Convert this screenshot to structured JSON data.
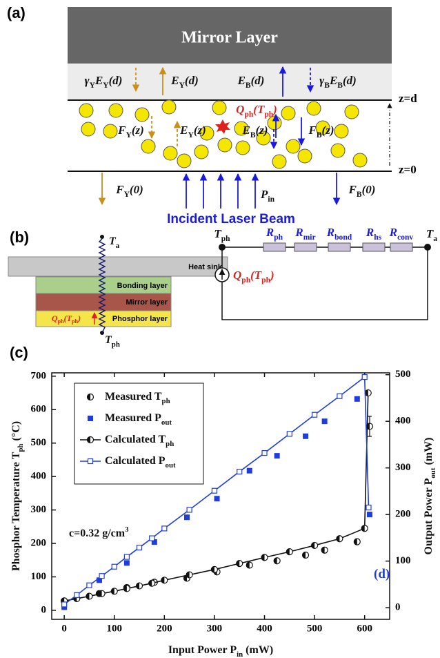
{
  "diagram_a": {
    "label": "(a)",
    "mirror": "Mirror Layer",
    "top_labels": [
      [
        "γ",
        "Y",
        "E",
        "Y",
        "(d)"
      ],
      [
        "E",
        "Y",
        "(d)"
      ],
      [
        "E",
        "B",
        "(d)"
      ],
      [
        "γ",
        "B",
        "E",
        "B",
        "(d)"
      ]
    ],
    "inner_labels": [
      [
        "F",
        "Y",
        "(z)"
      ],
      [
        "E",
        "Y",
        "(z)"
      ],
      [
        "Q",
        "ph",
        "(T",
        "ph",
        ")"
      ],
      [
        "E",
        "B",
        "(z)"
      ],
      [
        "F",
        "B",
        "(z)"
      ]
    ],
    "z_labels": [
      "z=d",
      "z=0"
    ],
    "bottom_labels": [
      [
        "F",
        "Y",
        "(0)"
      ],
      [
        "P",
        "in"
      ],
      [
        "F",
        "B",
        "(0)"
      ]
    ],
    "beam": "Incident Laser Beam"
  },
  "diagram_b": {
    "label": "(b)",
    "layers": [
      "Heat sink",
      "Bonding layer",
      "Mirror layer",
      "Phosphor layer"
    ],
    "stack_source": [
      "Q",
      "ph",
      "(T",
      "ph",
      ")"
    ],
    "stack_top": [
      "T",
      "a"
    ],
    "stack_bottom": [
      "T",
      "ph"
    ],
    "circuit_nodes": [
      [
        "T",
        "ph"
      ],
      [
        "T",
        "a"
      ]
    ],
    "resistors": [
      [
        "R",
        "ph"
      ],
      [
        "R",
        "mir"
      ],
      [
        "R",
        "bond"
      ],
      [
        "R",
        "hs"
      ],
      [
        "R",
        "conv"
      ]
    ],
    "circuit_source": [
      "Q",
      "ph",
      "(T",
      "ph",
      ")"
    ]
  },
  "chart_data": {
    "type": "line",
    "label": "(c)",
    "x_label": [
      "Input Power P",
      "in",
      " (mW)"
    ],
    "y_label": [
      "Phosphor Temperature T",
      "ph",
      " (°C)"
    ],
    "y2_label": [
      "Output Power P",
      "out",
      " (mW)"
    ],
    "annotations": [
      [
        "c=0.32 g/cm",
        "3"
      ],
      [
        "(d)"
      ]
    ],
    "xlim": [
      -25,
      650
    ],
    "xticks": [
      0,
      100,
      200,
      300,
      400,
      500,
      600
    ],
    "ylim": [
      -27,
      710
    ],
    "yticks": [
      0,
      100,
      200,
      300,
      400,
      500,
      600,
      700
    ],
    "y2lim": [
      -25,
      504
    ],
    "y2ticks": [
      0,
      100,
      200,
      300,
      400,
      500
    ],
    "legend": "upper left",
    "series": [
      {
        "name": [
          "Measured T",
          "ph"
        ],
        "color": "#111111",
        "mode": "markers",
        "marker": "half-circle",
        "axis": "y",
        "x": [
          0,
          70,
          125,
          180,
          245,
          305,
          370,
          425,
          482,
          520,
          585,
          610
        ],
        "values": [
          28,
          50,
          68,
          84,
          96,
          115,
          135,
          148,
          165,
          180,
          205,
          550
        ],
        "errors": [
          4,
          3,
          3,
          4,
          5,
          5,
          6,
          6,
          7,
          8,
          8,
          30
        ]
      },
      {
        "name": [
          "Measured P",
          "out"
        ],
        "color": "#1f3ddb",
        "mode": "markers",
        "marker": "square",
        "axis": "y2",
        "x": [
          0,
          70,
          125,
          180,
          245,
          305,
          370,
          425,
          482,
          520,
          585,
          610
        ],
        "values": [
          1,
          59,
          96,
          141,
          194,
          234,
          294,
          326,
          368,
          400,
          448,
          200
        ]
      },
      {
        "name": [
          "Calculated T",
          "ph"
        ],
        "color": "#111111",
        "mode": "lines+markers",
        "marker": "half-circle",
        "axis": "y",
        "x": [
          0,
          25,
          50,
          75,
          100,
          125,
          150,
          175,
          200,
          250,
          300,
          350,
          400,
          450,
          500,
          550,
          600,
          607
        ],
        "values": [
          28,
          35,
          42,
          50,
          57,
          65,
          73,
          81,
          90,
          106,
          122,
          140,
          158,
          175,
          194,
          214,
          245,
          650
        ]
      },
      {
        "name": [
          "Calculated P",
          "out"
        ],
        "color": "#1f3ddb",
        "mode": "lines+markers",
        "marker": "open-square",
        "axis": "y2",
        "x": [
          0,
          25,
          50,
          75,
          100,
          125,
          150,
          175,
          200,
          250,
          300,
          350,
          400,
          450,
          500,
          550,
          600,
          608
        ],
        "values": [
          7,
          27,
          48,
          68,
          88,
          109,
          129,
          149,
          170,
          210,
          251,
          292,
          332,
          373,
          414,
          454,
          495,
          215
        ]
      }
    ]
  }
}
